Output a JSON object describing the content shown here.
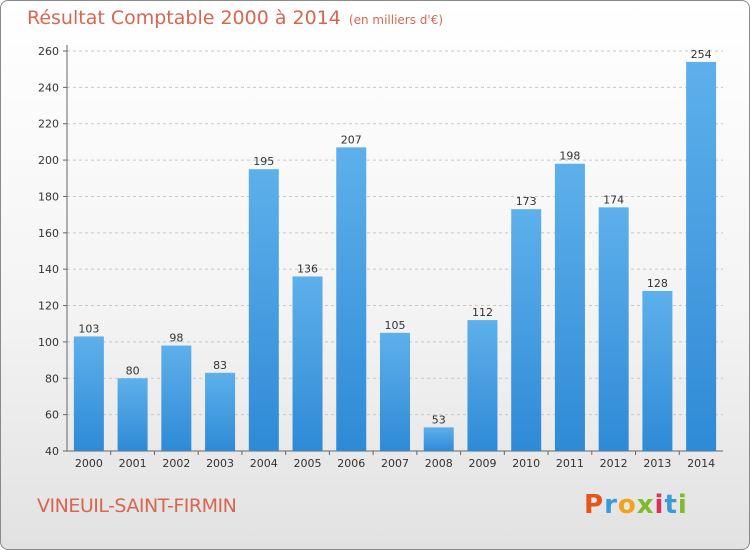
{
  "title": "Résultat Comptable 2000 à 2014",
  "subtitle": "(en milliers d'€)",
  "commune": "VINEUIL-SAINT-FIRMIN",
  "logo": {
    "letters": [
      "P",
      "r",
      "o",
      "x",
      "i",
      "t",
      "i"
    ],
    "colors": [
      "#e8551b",
      "#3a9bd8",
      "#f4a11a",
      "#7dbb2a",
      "#d9315a",
      "#3a9bd8",
      "#7dbb2a"
    ]
  },
  "colors": {
    "bar": "#2f8ad6",
    "bar_light": "#5db0ea",
    "title": "#d9664f",
    "grid": "#c8c8c8"
  },
  "chart_data": {
    "type": "bar",
    "categories": [
      "2000",
      "2001",
      "2002",
      "2003",
      "2004",
      "2005",
      "2006",
      "2007",
      "2008",
      "2009",
      "2010",
      "2011",
      "2012",
      "2013",
      "2014"
    ],
    "values": [
      103,
      80,
      98,
      83,
      195,
      136,
      207,
      105,
      53,
      112,
      173,
      198,
      174,
      128,
      254
    ],
    "yticks": [
      40,
      60,
      80,
      100,
      120,
      140,
      160,
      180,
      200,
      220,
      240,
      260
    ],
    "ylim": [
      40,
      260
    ],
    "grid": true,
    "xlabel": "",
    "ylabel": ""
  }
}
